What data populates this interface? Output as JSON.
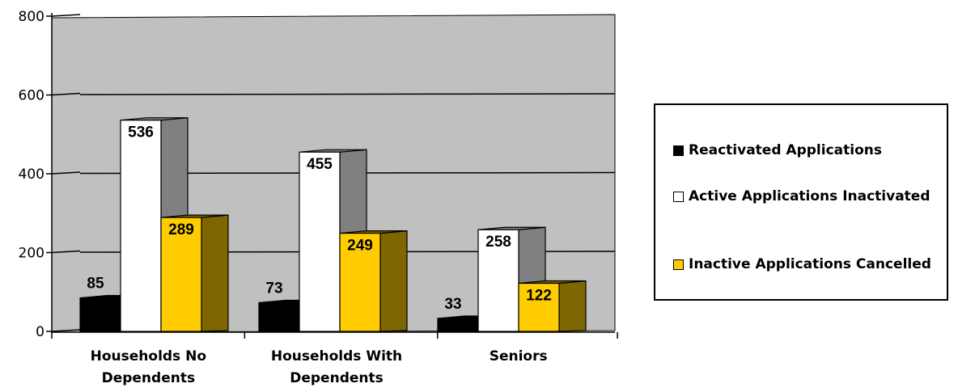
{
  "chart_data": {
    "type": "bar",
    "categories": [
      [
        "Households No",
        "Dependents"
      ],
      [
        "Households With",
        "Dependents"
      ],
      [
        "Seniors"
      ]
    ],
    "series": [
      {
        "name": "Reactivated Applications",
        "values": [
          85,
          73,
          33
        ],
        "color": "#000000",
        "side_color": "#000000"
      },
      {
        "name": "Active Applications Inactivated",
        "values": [
          536,
          455,
          258
        ],
        "color": "#ffffff",
        "side_color": "#808080"
      },
      {
        "name": "Inactive Applications Cancelled",
        "values": [
          289,
          249,
          122
        ],
        "color": "#ffcc00",
        "side_color": "#806600"
      }
    ],
    "yticks": [
      0,
      200,
      400,
      600,
      800
    ],
    "ylim": [
      0,
      800
    ],
    "grid": true,
    "plot_background": "#c0c0c0",
    "legend_position": "right"
  }
}
